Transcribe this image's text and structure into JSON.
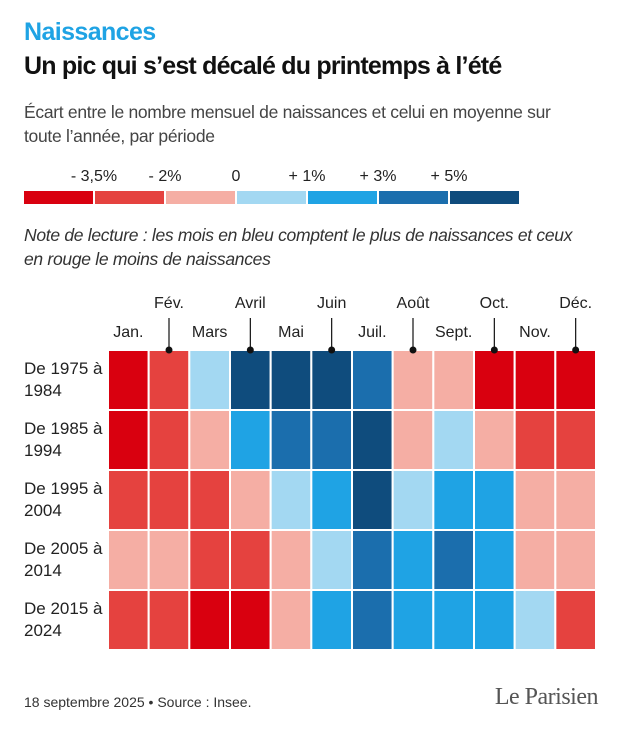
{
  "chart_data": {
    "type": "heatmap",
    "kicker": "Naissances",
    "title": "Un pic qui s’est décalé du printemps à l’été",
    "subtitle": "Écart entre le nombre mensuel de naissances et celui en moyenne sur toute l’année, par période",
    "note": "Note de lecture : les mois en bleu comptent le plus de naissances et ceux en rouge le moins de naissances",
    "x": [
      "Jan.",
      "Fév.",
      "Mars",
      "Avril",
      "Mai",
      "Juin",
      "Juil.",
      "Août",
      "Sept.",
      "Oct.",
      "Nov.",
      "Déc."
    ],
    "y": [
      "De 1975 à 1984",
      "De 1985 à 1994",
      "De 1995 à 2004",
      "De 2005 à 2014",
      "De 2015 à 2024"
    ],
    "values": [
      [
        -4.5,
        -2.75,
        0.5,
        6,
        6,
        6,
        4,
        -1,
        -1,
        -4.5,
        -4.5,
        -4.5
      ],
      [
        -4.5,
        -2.75,
        -1,
        2,
        4,
        4,
        6,
        -1,
        0.5,
        -1,
        -2.75,
        -2.75
      ],
      [
        -2.75,
        -2.75,
        -2.75,
        -1,
        0.5,
        2,
        6,
        0.5,
        2,
        2,
        -1,
        -1
      ],
      [
        -1,
        -1,
        -2.75,
        -2.75,
        -1,
        0.5,
        4,
        2,
        4,
        2,
        -1,
        -1
      ],
      [
        -2.75,
        -2.75,
        -4.5,
        -4.5,
        -1,
        2,
        4,
        2,
        2,
        2,
        0.5,
        -2.75
      ]
    ],
    "color_ticks": [
      {
        "value": -3.5,
        "label": "- 3,5%"
      },
      {
        "value": -2,
        "label": "- 2%"
      },
      0,
      {
        "value": 1,
        "label": "+ 1%"
      },
      {
        "value": 3,
        "label": "+ 3%"
      },
      {
        "value": 5,
        "label": "+ 5%"
      }
    ],
    "colors": [
      "#d9000f",
      "#e5423f",
      "#f5aea4",
      "#a3d8f2",
      "#1fa3e4",
      "#1b6ead",
      "#0f4c7d"
    ],
    "source": "18 septembre 2025 • Source : Insee.",
    "logo": "Le Parisien"
  }
}
